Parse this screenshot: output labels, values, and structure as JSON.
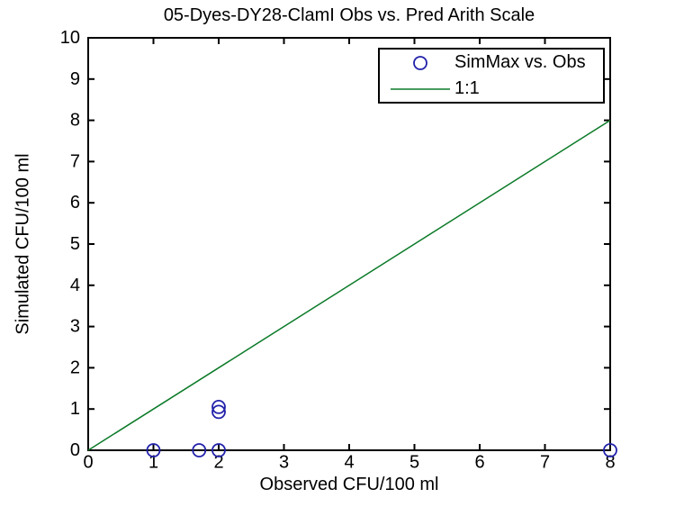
{
  "figure": {
    "background": "#ffffff",
    "axes_color": "#000000"
  },
  "chart_data": {
    "type": "scatter",
    "title": "05-Dyes-DY28-ClamI Obs vs. Pred Arith Scale",
    "xlabel": "Observed CFU/100 ml",
    "ylabel": "Simulated CFU/100 ml",
    "xlim": [
      0,
      8
    ],
    "ylim": [
      0,
      10
    ],
    "xticks": [
      0,
      1,
      2,
      3,
      4,
      5,
      6,
      7,
      8
    ],
    "yticks": [
      0,
      1,
      2,
      3,
      4,
      5,
      6,
      7,
      8,
      9,
      10
    ],
    "grid": false,
    "legend_position": "top-right",
    "series": [
      {
        "name": "SimMax vs. Obs",
        "type": "scatter",
        "marker": "circle",
        "color": "#2121AA",
        "points": [
          [
            1,
            0
          ],
          [
            1.7,
            0
          ],
          [
            2,
            0
          ],
          [
            2,
            0.93
          ],
          [
            2,
            1.05
          ],
          [
            8,
            0
          ]
        ]
      },
      {
        "name": "1:1",
        "type": "line",
        "color": "#0B7A28",
        "x": [
          0,
          8
        ],
        "y": [
          0,
          8
        ]
      }
    ]
  }
}
